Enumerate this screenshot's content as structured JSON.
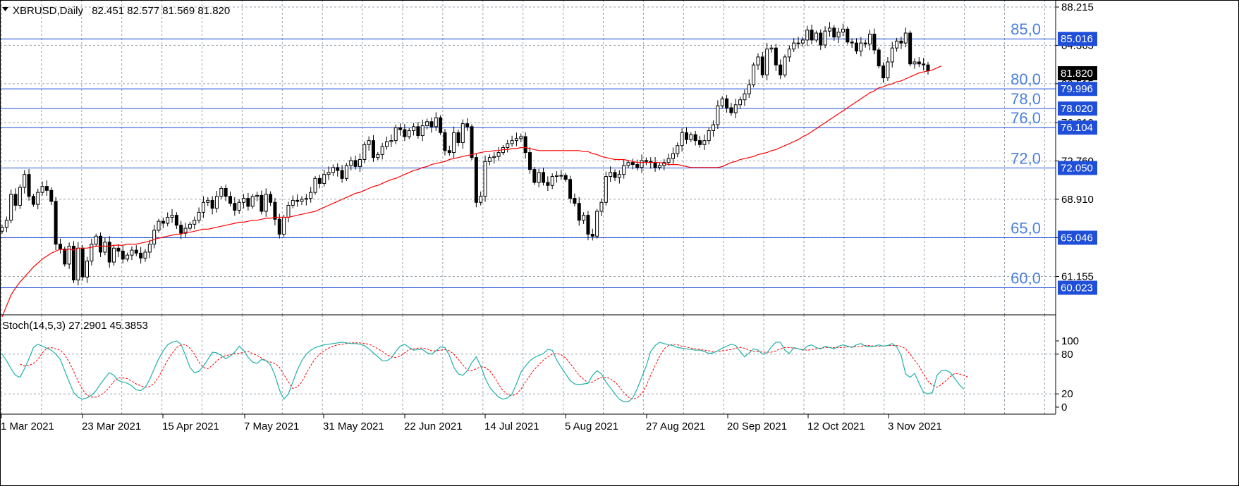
{
  "main_header": {
    "symbol": "XBRUSD,Daily",
    "ohlc": "82.451 82.577 81.569 81.820"
  },
  "stoch_header": {
    "label": "Stoch(14,5,3) 27.2901 45.3853"
  },
  "colors": {
    "bull_body": "#ffffff",
    "bear_body": "#000000",
    "candle_outline": "#000000",
    "ma_line": "#ff0000",
    "level_line": "#1f4fd8",
    "level_label": "#4a7fe0",
    "stoch_main": "#20b2aa",
    "stoch_signal": "#ff0000",
    "grid": "#9aa3ad",
    "price_badge": "#000000"
  },
  "chart_data": [
    {
      "type": "candlestick",
      "title": "XBRUSD,Daily",
      "ylim": [
        57.3,
        88.215
      ],
      "y_ticks": [
        "88.215",
        "84.365",
        "80.515",
        "76.610",
        "72.760",
        "68.910",
        "65.060",
        "61.155"
      ],
      "x_tick_labels": [
        "1 Mar 2021",
        "23 Mar 2021",
        "15 Apr 2021",
        "7 May 2021",
        "31 May 2021",
        "22 Jun 2021",
        "14 Jul 2021",
        "5 Aug 2021",
        "27 Aug 2021",
        "20 Sep 2021",
        "12 Oct 2021",
        "3 Nov 2021"
      ],
      "current_price": "81.820",
      "levels": [
        {
          "name": "85,0",
          "value": "85.016"
        },
        {
          "name": "80,0",
          "value": "79.996"
        },
        {
          "name": "78,0",
          "value": "78.020"
        },
        {
          "name": "76,0",
          "value": "76.104"
        },
        {
          "name": "72,0",
          "value": "72.050"
        },
        {
          "name": "65,0",
          "value": "65.046"
        },
        {
          "name": "60,0",
          "value": "60.023"
        }
      ],
      "series": [
        {
          "kind": "ohlc",
          "closes": [
            66.1,
            66.8,
            69.4,
            68.3,
            70.1,
            71.4,
            69.2,
            68.4,
            69.6,
            70.2,
            69.8,
            68.7,
            64.4,
            63.9,
            62.4,
            64.2,
            60.8,
            64.0,
            61.1,
            62.7,
            64.4,
            65.2,
            63.6,
            64.6,
            62.6,
            64.0,
            63.7,
            62.9,
            63.3,
            63.8,
            63.5,
            63.0,
            63.6,
            64.4,
            65.8,
            66.7,
            66.5,
            67.1,
            67.3,
            66.3,
            65.5,
            66.0,
            66.4,
            66.8,
            67.6,
            68.6,
            68.8,
            68.0,
            69.2,
            70.0,
            69.2,
            68.5,
            67.8,
            68.6,
            69.0,
            68.2,
            69.2,
            69.3,
            67.7,
            69.4,
            68.6,
            66.9,
            65.4,
            67.1,
            68.3,
            68.8,
            68.7,
            68.9,
            69.0,
            69.6,
            71.0,
            70.5,
            71.4,
            71.6,
            72.1,
            71.8,
            71.0,
            72.3,
            72.8,
            72.2,
            72.9,
            74.4,
            74.8,
            73.1,
            73.4,
            74.2,
            74.7,
            74.8,
            76.1,
            75.9,
            75.2,
            75.8,
            76.2,
            75.3,
            76.3,
            76.7,
            76.2,
            77.1,
            75.6,
            73.8,
            73.6,
            75.6,
            74.6,
            76.5,
            76.2,
            73.1,
            68.6,
            69.2,
            72.7,
            73.1,
            73.2,
            73.6,
            74.1,
            74.5,
            74.8,
            75.0,
            75.2,
            73.6,
            71.9,
            70.6,
            71.6,
            70.6,
            70.3,
            71.2,
            71.3,
            71.3,
            70.9,
            69.0,
            68.5,
            66.8,
            67.3,
            65.4,
            65.2,
            67.7,
            68.6,
            71.2,
            71.6,
            71.1,
            71.4,
            72.3,
            72.6,
            72.4,
            72.1,
            72.8,
            72.7,
            72.6,
            72.1,
            72.3,
            72.6,
            73.0,
            73.5,
            74.3,
            75.6,
            74.9,
            75.4,
            74.8,
            74.4,
            74.8,
            75.8,
            76.4,
            78.3,
            79.0,
            78.1,
            77.6,
            78.4,
            78.9,
            79.5,
            80.4,
            82.4,
            83.2,
            81.4,
            84.0,
            84.1,
            82.4,
            81.4,
            83.2,
            84.0,
            84.6,
            84.6,
            84.9,
            85.9,
            84.9,
            85.6,
            84.4,
            85.8,
            86.1,
            85.2,
            85.7,
            86.0,
            84.7,
            84.6,
            83.8,
            84.6,
            84.5,
            85.5,
            83.9,
            82.3,
            81.1,
            82.7,
            84.1,
            84.8,
            84.6,
            85.6,
            82.5,
            82.7,
            82.5,
            82.4,
            81.8
          ]
        },
        {
          "kind": "line",
          "values": [
            57.1,
            58.2,
            59.3,
            60.0,
            60.6,
            61.1,
            61.6,
            62.1,
            62.5,
            62.9,
            63.2,
            63.5,
            63.7,
            63.9,
            63.8,
            63.9,
            63.8,
            64.0,
            64.0,
            64.0,
            64.1,
            64.2,
            64.2,
            64.2,
            64.2,
            64.3,
            64.3,
            64.3,
            64.4,
            64.4,
            64.4,
            64.5,
            64.6,
            64.7,
            64.9,
            65.0,
            65.1,
            65.2,
            65.3,
            65.4,
            65.4,
            65.6,
            65.6,
            65.7,
            65.8,
            65.9,
            65.9,
            66.0,
            66.1,
            66.2,
            66.3,
            66.4,
            66.5,
            66.6,
            66.6,
            66.7,
            66.8,
            66.8,
            66.9,
            67.0,
            67.0,
            67.1,
            67.1,
            67.1,
            67.1,
            67.2,
            67.3,
            67.4,
            67.5,
            67.6,
            67.7,
            67.9,
            68.1,
            68.3,
            68.5,
            68.7,
            68.9,
            69.1,
            69.3,
            69.5,
            69.6,
            69.8,
            70.0,
            70.2,
            70.3,
            70.5,
            70.7,
            70.9,
            71.0,
            71.2,
            71.4,
            71.6,
            71.8,
            71.9,
            72.1,
            72.2,
            72.4,
            72.5,
            72.6,
            72.7,
            72.9,
            73.0,
            73.1,
            73.2,
            73.3,
            73.4,
            73.5,
            73.6,
            73.7,
            73.7,
            73.8,
            73.8,
            73.9,
            73.9,
            74.0,
            74.0,
            74.1,
            74.1,
            74.0,
            73.9,
            73.8,
            73.8,
            73.8,
            73.8,
            73.8,
            73.8,
            73.8,
            73.8,
            73.8,
            73.8,
            73.7,
            73.7,
            73.5,
            73.4,
            73.2,
            73.1,
            73.0,
            72.9,
            72.9,
            72.9,
            72.8,
            72.7,
            72.6,
            72.6,
            72.6,
            72.6,
            72.6,
            72.6,
            72.5,
            72.4,
            72.4,
            72.4,
            72.3,
            72.2,
            72.1,
            72.1,
            72.1,
            72.1,
            72.1,
            72.1,
            72.1,
            72.2,
            72.4,
            72.6,
            72.7,
            72.9,
            73.0,
            73.1,
            73.2,
            73.4,
            73.5,
            73.6,
            73.8,
            73.9,
            74.1,
            74.3,
            74.5,
            74.7,
            74.9,
            75.2,
            75.4,
            75.7,
            76.0,
            76.3,
            76.6,
            76.9,
            77.2,
            77.5,
            77.8,
            78.1,
            78.4,
            78.7,
            79.0,
            79.3,
            79.6,
            79.8,
            80.1,
            80.2,
            80.4,
            80.5,
            80.7,
            80.8,
            81.0,
            81.2,
            81.4,
            81.6,
            81.7,
            81.8,
            81.9,
            82.1,
            82.3
          ]
        }
      ]
    },
    {
      "type": "line",
      "title": "Stoch(14,5,3) 27.2901 45.3853",
      "ylim": [
        0,
        100
      ],
      "y_ticks": [
        "100",
        "80",
        "20",
        "0"
      ],
      "series": [
        {
          "values": [
            80,
            70,
            58,
            48,
            45,
            58,
            73,
            90,
            95,
            92,
            89,
            86,
            80,
            72,
            55,
            38,
            22,
            15,
            12,
            14,
            18,
            25,
            35,
            44,
            52,
            48,
            40,
            38,
            36,
            32,
            26,
            25,
            30,
            42,
            58,
            73,
            85,
            94,
            98,
            100,
            95,
            78,
            60,
            52,
            54,
            62,
            72,
            83,
            82,
            78,
            73,
            77,
            83,
            92,
            86,
            75,
            68,
            66,
            72,
            70,
            64,
            48,
            26,
            12,
            20,
            38,
            56,
            70,
            80,
            86,
            90,
            92,
            94,
            95,
            96,
            97,
            98,
            97,
            96,
            96,
            95,
            93,
            88,
            82,
            76,
            70,
            70,
            74,
            84,
            92,
            95,
            90,
            86,
            87,
            87,
            82,
            80,
            85,
            91,
            90,
            78,
            60,
            50,
            48,
            55,
            67,
            76,
            62,
            44,
            30,
            22,
            15,
            12,
            14,
            20,
            35,
            53,
            62,
            70,
            75,
            78,
            81,
            87,
            86,
            71,
            60,
            50,
            40,
            35,
            34,
            35,
            36,
            48,
            55,
            50,
            38,
            29,
            20,
            12,
            8,
            8,
            14,
            28,
            45,
            62,
            84,
            93,
            98,
            96,
            94,
            93,
            90,
            89,
            88,
            87,
            86,
            86,
            84,
            81,
            82,
            85,
            89,
            92,
            95,
            93,
            84,
            76,
            82,
            88,
            86,
            80,
            82,
            91,
            98,
            98,
            86,
            81,
            90,
            88,
            86,
            92,
            94,
            90,
            88,
            92,
            90,
            88,
            92,
            94,
            92,
            90,
            94,
            96,
            92,
            91,
            92,
            94,
            92,
            93,
            96,
            91,
            78,
            50,
            45,
            51,
            36,
            22,
            20,
            22,
            48,
            55,
            56,
            52,
            43,
            34,
            27
          ]
        },
        {
          "values": [
            null,
            null,
            null,
            null,
            65,
            62,
            63,
            66,
            72,
            82,
            89,
            90,
            88,
            86,
            79,
            68,
            54,
            39,
            26,
            18,
            15,
            15,
            18,
            23,
            30,
            39,
            44,
            44,
            43,
            39,
            35,
            32,
            30,
            31,
            36,
            46,
            58,
            71,
            81,
            90,
            94,
            94,
            89,
            80,
            68,
            60,
            58,
            63,
            70,
            75,
            78,
            79,
            81,
            81,
            83,
            84,
            81,
            78,
            74,
            70,
            68,
            66,
            60,
            49,
            38,
            28,
            30,
            38,
            51,
            63,
            73,
            80,
            85,
            89,
            92,
            94,
            95,
            96,
            97,
            97,
            97,
            96,
            95,
            92,
            88,
            84,
            79,
            76,
            75,
            77,
            82,
            87,
            88,
            89,
            89,
            88,
            85,
            85,
            86,
            87,
            85,
            80,
            72,
            64,
            56,
            55,
            58,
            61,
            60,
            55,
            46,
            34,
            25,
            19,
            17,
            20,
            27,
            38,
            48,
            57,
            64,
            71,
            76,
            80,
            81,
            79,
            74,
            66,
            57,
            48,
            42,
            37,
            38,
            42,
            45,
            45,
            43,
            38,
            31,
            22,
            15,
            12,
            14,
            20,
            32,
            48,
            63,
            77,
            88,
            93,
            95,
            94,
            92,
            91,
            89,
            88,
            87,
            86,
            85,
            84,
            84,
            85,
            86,
            87,
            89,
            90,
            89,
            86,
            84,
            84,
            83,
            83,
            83,
            85,
            88,
            90,
            90,
            89,
            88,
            87,
            86,
            87,
            88,
            89,
            90,
            90,
            90,
            90,
            90,
            91,
            91,
            91,
            92,
            93,
            93,
            92,
            92,
            92,
            93,
            93,
            93,
            92,
            88,
            80,
            71,
            62,
            50,
            39,
            33,
            30,
            34,
            40,
            46,
            51,
            50,
            48,
            45
          ]
        }
      ]
    }
  ]
}
